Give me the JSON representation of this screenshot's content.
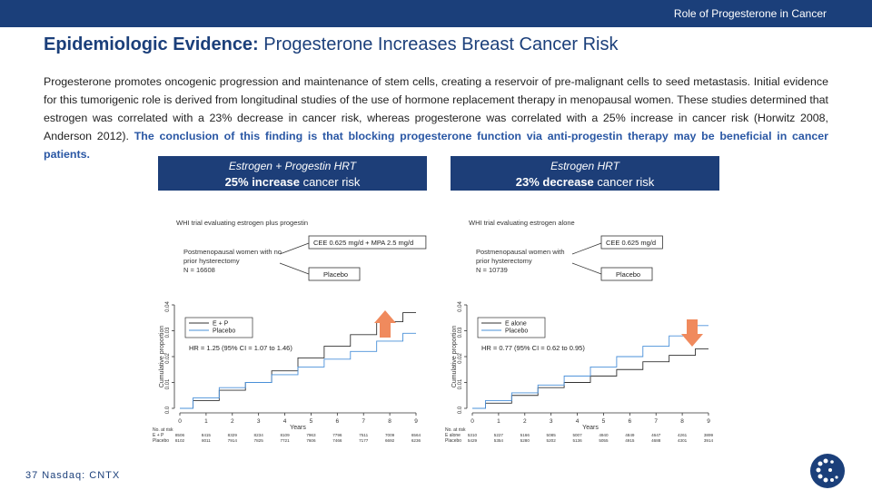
{
  "header": {
    "section_title": "Role of Progesterone in Cancer"
  },
  "title": {
    "bold": "Epidemiologic Evidence:",
    "rest": " Progesterone Increases Breast Cancer Risk"
  },
  "body": {
    "paragraph": "Progesterone promotes oncogenic progression and maintenance of stem cells, creating a reservoir of pre-malignant cells to seed metastasis.  Initial evidence for this tumorigenic role is derived from longitudinal studies of the use of hormone replacement therapy in menopausal women.  These studies determined that estrogen was correlated with a 23% decrease in cancer risk, whereas progesterone was correlated with a 25% increase in cancer risk (Horwitz 2008, Anderson 2012).",
    "emphasis": " The conclusion of this finding is that blocking progesterone function via anti-progestin therapy may be beneficial in cancer patients."
  },
  "boxes": {
    "left": {
      "line1": "Estrogen + Progestin HRT",
      "bold": "25% increase",
      "rest": " cancer risk"
    },
    "right": {
      "line1": "Estrogen HRT",
      "bold": "23% decrease",
      "rest": " cancer risk"
    }
  },
  "colors": {
    "brand": "#1b3f7a",
    "box": "#1d3e78",
    "emphasis": "#2a57a4",
    "arrow": "#f08a5d",
    "placebo_line": "#4a90d9",
    "treatment_line": "#333333"
  },
  "footer": {
    "page_number": "37",
    "ticker": "Nasdaq: CNTX"
  },
  "logo_icon": "dotted-circle-logo-icon",
  "chart_data": [
    {
      "type": "line",
      "trial_title": "WHI trial evaluating estrogen plus progestin",
      "population": [
        "Postmenopausal women with no",
        "prior hysterectomy",
        "N = 16608"
      ],
      "arms": [
        "CEE 0.625 mg/d + MPA 2.5 mg/d",
        "Placebo"
      ],
      "xlabel": "Years",
      "ylabel": "Cumulative proportion",
      "xlim": [
        0,
        9
      ],
      "ylim": [
        0,
        0.04
      ],
      "xticks": [
        "0",
        "1",
        "2",
        "3",
        "4",
        "5",
        "6",
        "7",
        "8",
        "9"
      ],
      "yticks": [
        "0.0",
        "0.01",
        "0.02",
        "0.03",
        "0.04"
      ],
      "hr_text": "HR = 1.25 (95% CI = 1.07 to 1.46)",
      "arrow": "up",
      "series": [
        {
          "name": "E + P",
          "x": [
            0,
            1,
            2,
            3,
            4,
            5,
            6,
            7,
            8,
            9
          ],
          "y": [
            0,
            0.003,
            0.007,
            0.01,
            0.0145,
            0.0195,
            0.024,
            0.0285,
            0.0335,
            0.037
          ]
        },
        {
          "name": "Placebo",
          "x": [
            0,
            1,
            2,
            3,
            4,
            5,
            6,
            7,
            8,
            9
          ],
          "y": [
            0,
            0.004,
            0.008,
            0.01,
            0.013,
            0.016,
            0.019,
            0.022,
            0.026,
            0.029
          ]
        }
      ],
      "at_risk": {
        "header": "No. at risk",
        "rows": [
          {
            "label": "E + P",
            "values": [
              "8506",
              "8415",
              "8329",
              "8234",
              "8109",
              "7963",
              "7796",
              "7511",
              "7009",
              "6564"
            ]
          },
          {
            "label": "Placebo",
            "values": [
              "8102",
              "8011",
              "7914",
              "7825",
              "7721",
              "7606",
              "7466",
              "7177",
              "6692",
              "6236"
            ]
          }
        ]
      }
    },
    {
      "type": "line",
      "trial_title": "WHI trial evaluating estrogen alone",
      "population": [
        "Postmenopausal women with",
        "prior hysterectomy",
        "N = 10739"
      ],
      "arms": [
        "CEE 0.625 mg/d",
        "Placebo"
      ],
      "xlabel": "Years",
      "ylabel": "Cumulative proportion",
      "xlim": [
        0,
        9
      ],
      "ylim": [
        0,
        0.04
      ],
      "xticks": [
        "0",
        "1",
        "2",
        "3",
        "4",
        "5",
        "6",
        "7",
        "8",
        "9"
      ],
      "yticks": [
        "0.0",
        "0.01",
        "0.02",
        "0.03",
        "0.04"
      ],
      "hr_text": "HR = 0.77 (95% CI = 0.62 to 0.95)",
      "arrow": "down",
      "series": [
        {
          "name": "E alone",
          "x": [
            0,
            1,
            2,
            3,
            4,
            5,
            6,
            7,
            8,
            9
          ],
          "y": [
            0,
            0.002,
            0.005,
            0.008,
            0.01,
            0.0125,
            0.015,
            0.018,
            0.0205,
            0.023
          ]
        },
        {
          "name": "Placebo",
          "x": [
            0,
            1,
            2,
            3,
            4,
            5,
            6,
            7,
            8,
            9
          ],
          "y": [
            0,
            0.003,
            0.006,
            0.009,
            0.0125,
            0.016,
            0.02,
            0.024,
            0.028,
            0.032
          ]
        }
      ],
      "at_risk": {
        "header": "No. at risk",
        "rows": [
          {
            "label": "E alone",
            "values": [
              "5310",
              "5227",
              "5166",
              "5085",
              "5007",
              "4940",
              "4849",
              "4647",
              "4261",
              "3899"
            ]
          },
          {
            "label": "Placebo",
            "values": [
              "5429",
              "5354",
              "5280",
              "5202",
              "5136",
              "5055",
              "4915",
              "4688",
              "4301",
              "3914"
            ]
          }
        ]
      }
    }
  ]
}
